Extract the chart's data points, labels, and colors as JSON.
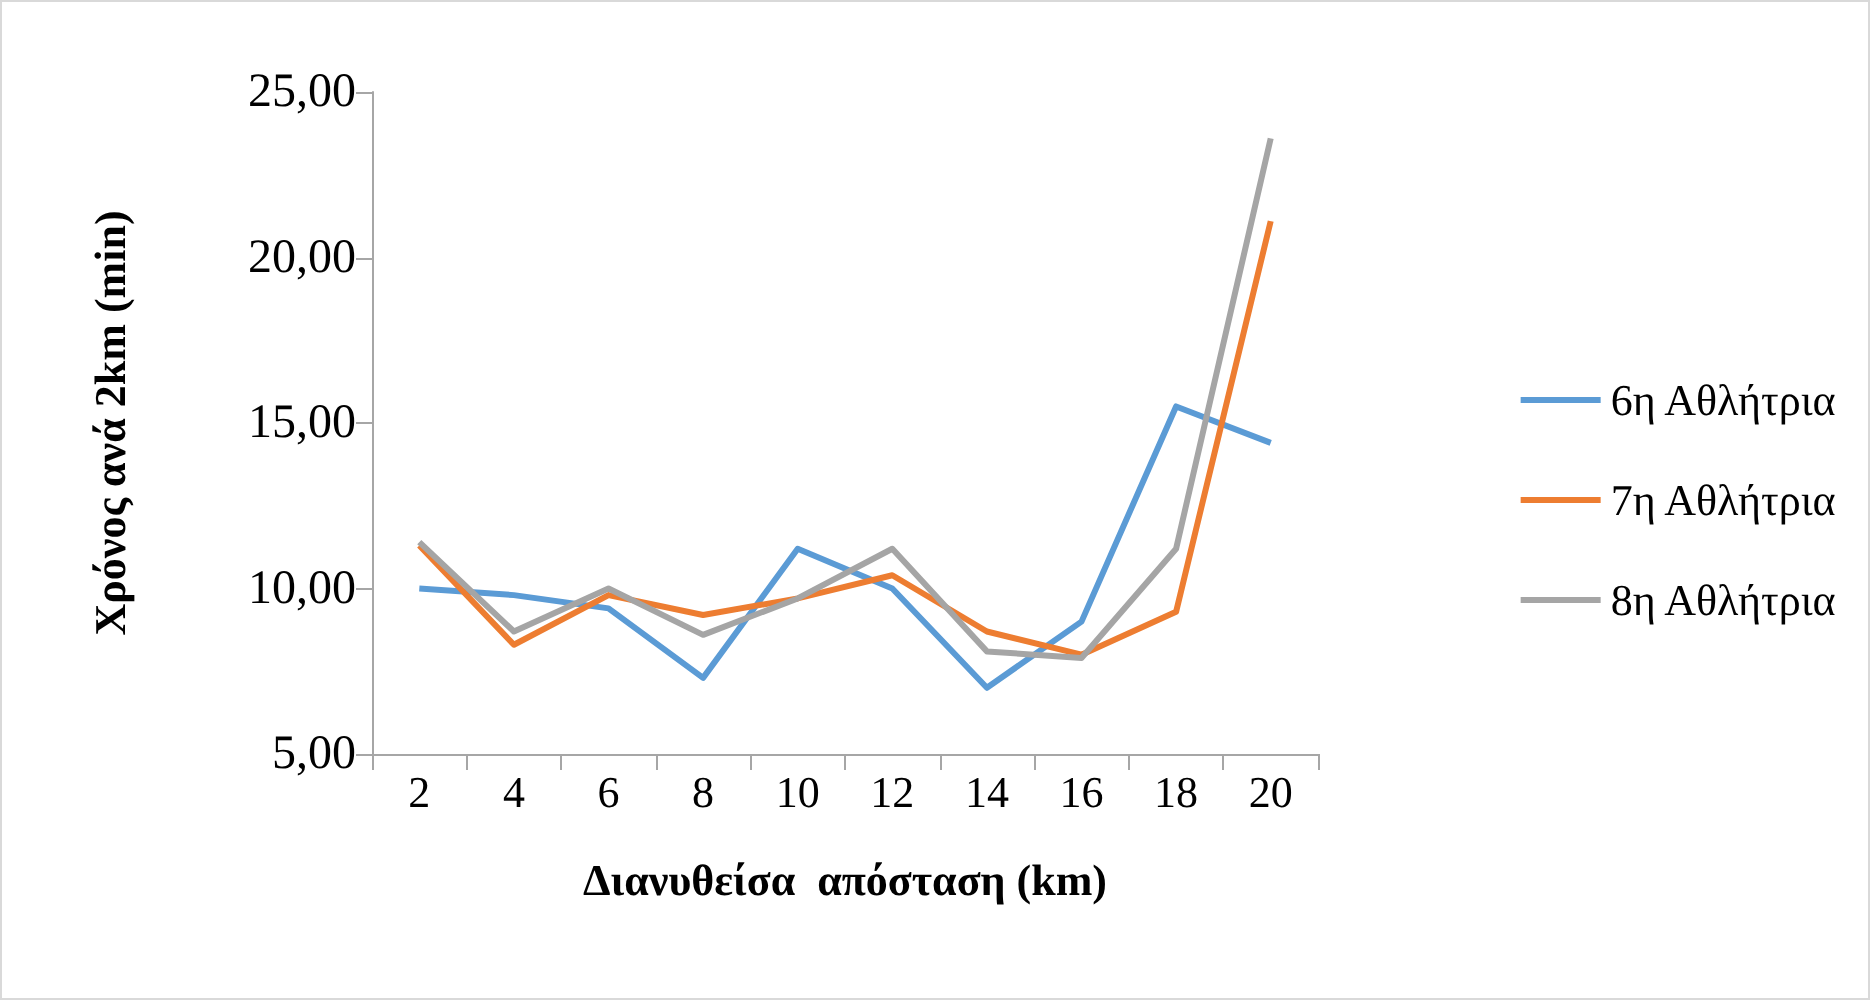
{
  "chart_data": {
    "type": "line",
    "xlabel": "Διανυθείσα  απόσταση (km)",
    "ylabel": "Χρόνος ανά 2km (min)",
    "categories": [
      "2",
      "4",
      "6",
      "8",
      "10",
      "12",
      "14",
      "16",
      "18",
      "20"
    ],
    "series": [
      {
        "name": "6η Αθλήτρια",
        "color": "#5b9bd5",
        "values": [
          10.0,
          9.8,
          9.4,
          7.3,
          11.2,
          10.0,
          7.0,
          9.0,
          15.5,
          14.4
        ]
      },
      {
        "name": "7η Αθλήτρια",
        "color": "#ed7d31",
        "values": [
          11.3,
          8.3,
          9.8,
          9.2,
          9.7,
          10.4,
          8.7,
          8.0,
          9.3,
          21.1
        ]
      },
      {
        "name": "8η Αθλήτρια",
        "color": "#a5a5a5",
        "values": [
          11.4,
          8.7,
          10.0,
          8.6,
          9.7,
          11.2,
          8.1,
          7.9,
          11.2,
          23.6
        ]
      }
    ],
    "ylim": [
      5,
      25
    ],
    "yticks": [
      {
        "value": 5,
        "label": "5,00"
      },
      {
        "value": 10,
        "label": "10,00"
      },
      {
        "value": 15,
        "label": "15,00"
      },
      {
        "value": 20,
        "label": "20,00"
      },
      {
        "value": 25,
        "label": "25,00"
      }
    ],
    "grid": false,
    "legend": "right",
    "marker": "none",
    "line_style": "solid"
  }
}
